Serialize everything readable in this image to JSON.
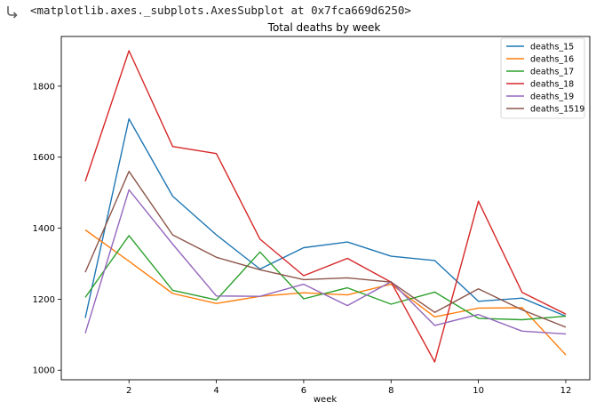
{
  "output": {
    "repr": "<matplotlib.axes._subplots.AxesSubplot at 0x7fca669d6250>",
    "icon": "output-redirect-icon"
  },
  "chart_data": {
    "type": "line",
    "title": "Total deaths by week",
    "xlabel": "week",
    "ylabel": "",
    "xlim": [
      0.45,
      12.55
    ],
    "ylim": [
      973,
      1940
    ],
    "xticks": [
      2,
      4,
      6,
      8,
      10,
      12
    ],
    "yticks": [
      1000,
      1200,
      1400,
      1600,
      1800
    ],
    "grid": false,
    "legend": "top-right",
    "x": [
      1,
      2,
      3,
      4,
      5,
      6,
      7,
      8,
      9,
      10,
      11,
      12
    ],
    "series": [
      {
        "name": "deaths_15",
        "color": "#1f77b4",
        "values": [
          1147,
          1708,
          1490,
          1381,
          1285,
          1345,
          1361,
          1321,
          1309,
          1194,
          1203,
          1152
        ]
      },
      {
        "name": "deaths_16",
        "color": "#ff7f0e",
        "values": [
          1395,
          1307,
          1216,
          1188,
          1208,
          1218,
          1212,
          1242,
          1150,
          1175,
          1176,
          1043
        ]
      },
      {
        "name": "deaths_17",
        "color": "#2ca02c",
        "values": [
          1205,
          1379,
          1225,
          1198,
          1333,
          1201,
          1232,
          1186,
          1220,
          1146,
          1142,
          1152
        ]
      },
      {
        "name": "deaths_18",
        "color": "#d62728",
        "values": [
          1532,
          1900,
          1630,
          1610,
          1369,
          1266,
          1315,
          1248,
          1023,
          1476,
          1219,
          1158
        ]
      },
      {
        "name": "deaths_19",
        "color": "#9467bd",
        "values": [
          1104,
          1508,
          1355,
          1209,
          1208,
          1242,
          1182,
          1249,
          1126,
          1157,
          1110,
          1102
        ]
      },
      {
        "name": "deaths_1519",
        "color": "#8c564b",
        "values": [
          1276,
          1560,
          1381,
          1318,
          1283,
          1255,
          1260,
          1248,
          1163,
          1229,
          1170,
          1121
        ]
      }
    ]
  }
}
